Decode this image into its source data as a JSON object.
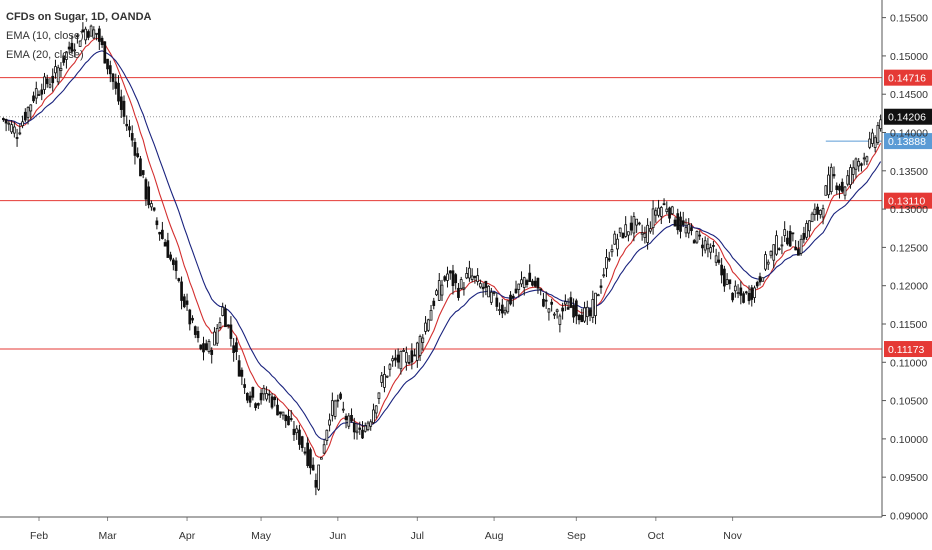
{
  "chart_data": {
    "type": "candlestick",
    "title": "CFDs on Sugar, 1D, OANDA",
    "indicators": [
      {
        "name": "EMA (10, close)",
        "color": "#d32f2f",
        "period": 10
      },
      {
        "name": "EMA (20, close)",
        "color": "#1a237e",
        "period": 20
      }
    ],
    "x_labels": [
      "Feb",
      "Mar",
      "Apr",
      "May",
      "Jun",
      "Jul",
      "Aug",
      "Sep",
      "Oct",
      "Nov"
    ],
    "y_ticks": [
      "0.15500",
      "0.15000",
      "0.14500",
      "0.14000",
      "0.13500",
      "0.13000",
      "0.12500",
      "0.12000",
      "0.11500",
      "0.11000",
      "0.10500",
      "0.10000",
      "0.09500",
      "0.09000"
    ],
    "ylim": [
      0.0898,
      0.1573
    ],
    "levels": [
      {
        "value": 0.14716,
        "label": "0.14716",
        "color": "#e53935"
      },
      {
        "value": 0.1311,
        "label": "0.13110",
        "color": "#e53935"
      },
      {
        "value": 0.11173,
        "label": "0.11173",
        "color": "#e53935"
      }
    ],
    "marker_level": {
      "value": 0.13888,
      "label": "0.13888",
      "color": "#5b9bd5"
    },
    "last_price": {
      "value": 0.14206,
      "label": "0.14206"
    },
    "price_anchors": [
      [
        0,
        0.1417
      ],
      [
        5,
        0.14
      ],
      [
        12,
        0.1455
      ],
      [
        18,
        0.147
      ],
      [
        24,
        0.151
      ],
      [
        30,
        0.1535
      ],
      [
        34,
        0.153
      ],
      [
        38,
        0.149
      ],
      [
        43,
        0.143
      ],
      [
        48,
        0.138
      ],
      [
        52,
        0.132
      ],
      [
        56,
        0.128
      ],
      [
        60,
        0.1245
      ],
      [
        64,
        0.12
      ],
      [
        68,
        0.1155
      ],
      [
        72,
        0.1115
      ],
      [
        76,
        0.112
      ],
      [
        80,
        0.117
      ],
      [
        84,
        0.112
      ],
      [
        88,
        0.1065
      ],
      [
        92,
        0.105
      ],
      [
        96,
        0.106
      ],
      [
        100,
        0.104
      ],
      [
        104,
        0.102
      ],
      [
        108,
        0.1
      ],
      [
        112,
        0.0968
      ],
      [
        114,
        0.0945
      ],
      [
        116,
        0.098
      ],
      [
        119,
        0.1035
      ],
      [
        122,
        0.105
      ],
      [
        126,
        0.102
      ],
      [
        130,
        0.1005
      ],
      [
        134,
        0.103
      ],
      [
        138,
        0.1075
      ],
      [
        142,
        0.11
      ],
      [
        146,
        0.1105
      ],
      [
        150,
        0.111
      ],
      [
        154,
        0.115
      ],
      [
        158,
        0.119
      ],
      [
        162,
        0.1215
      ],
      [
        166,
        0.1195
      ],
      [
        170,
        0.1215
      ],
      [
        174,
        0.12
      ],
      [
        178,
        0.1185
      ],
      [
        182,
        0.117
      ],
      [
        186,
        0.1185
      ],
      [
        190,
        0.121
      ],
      [
        194,
        0.12
      ],
      [
        198,
        0.1175
      ],
      [
        202,
        0.116
      ],
      [
        206,
        0.1175
      ],
      [
        210,
        0.1165
      ],
      [
        214,
        0.116
      ],
      [
        218,
        0.1205
      ],
      [
        222,
        0.1255
      ],
      [
        226,
        0.127
      ],
      [
        230,
        0.128
      ],
      [
        234,
        0.1265
      ],
      [
        238,
        0.13
      ],
      [
        242,
        0.1305
      ],
      [
        246,
        0.128
      ],
      [
        250,
        0.127
      ],
      [
        254,
        0.126
      ],
      [
        258,
        0.125
      ],
      [
        262,
        0.1215
      ],
      [
        266,
        0.119
      ],
      [
        270,
        0.1185
      ],
      [
        274,
        0.1195
      ],
      [
        278,
        0.123
      ],
      [
        282,
        0.1255
      ],
      [
        286,
        0.1265
      ],
      [
        290,
        0.125
      ],
      [
        294,
        0.1285
      ],
      [
        298,
        0.13
      ],
      [
        302,
        0.1345
      ],
      [
        306,
        0.1325
      ],
      [
        310,
        0.1355
      ],
      [
        314,
        0.137
      ],
      [
        318,
        0.1395
      ],
      [
        320,
        0.142
      ]
    ]
  }
}
